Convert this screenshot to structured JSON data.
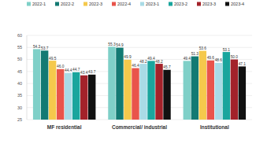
{
  "chart_data": {
    "type": "bar",
    "categories": [
      "MF residential",
      "Commercial/ industrial",
      "Institutional"
    ],
    "series": [
      {
        "name": "2022-1",
        "color": "#7fd0c8",
        "values": [
          54.3,
          55.3,
          49.4
        ]
      },
      {
        "name": "2022-2",
        "color": "#137a73",
        "values": [
          53.7,
          54.9,
          51.3
        ]
      },
      {
        "name": "2022-3",
        "color": "#f5c94c",
        "values": [
          49.5,
          49.9,
          53.6
        ]
      },
      {
        "name": "2022-4",
        "color": "#e9544b",
        "values": [
          46.0,
          46.4,
          49.6
        ]
      },
      {
        "name": "2023-1",
        "color": "#a9dbe6",
        "values": [
          44.4,
          48.2,
          48.6
        ]
      },
      {
        "name": "2023-2",
        "color": "#1aa59d",
        "values": [
          44.7,
          49.4,
          53.1
        ]
      },
      {
        "name": "2023-3",
        "color": "#a3222a",
        "values": [
          43.4,
          48.2,
          50.0
        ]
      },
      {
        "name": "2023-4",
        "color": "#111111",
        "values": [
          43.7,
          45.7,
          47.1
        ]
      }
    ],
    "ylim": [
      25,
      60
    ],
    "yticks": [
      25,
      30,
      35,
      40,
      45,
      50,
      55,
      60
    ],
    "grid": true,
    "legend": "top",
    "data_labels": true
  }
}
